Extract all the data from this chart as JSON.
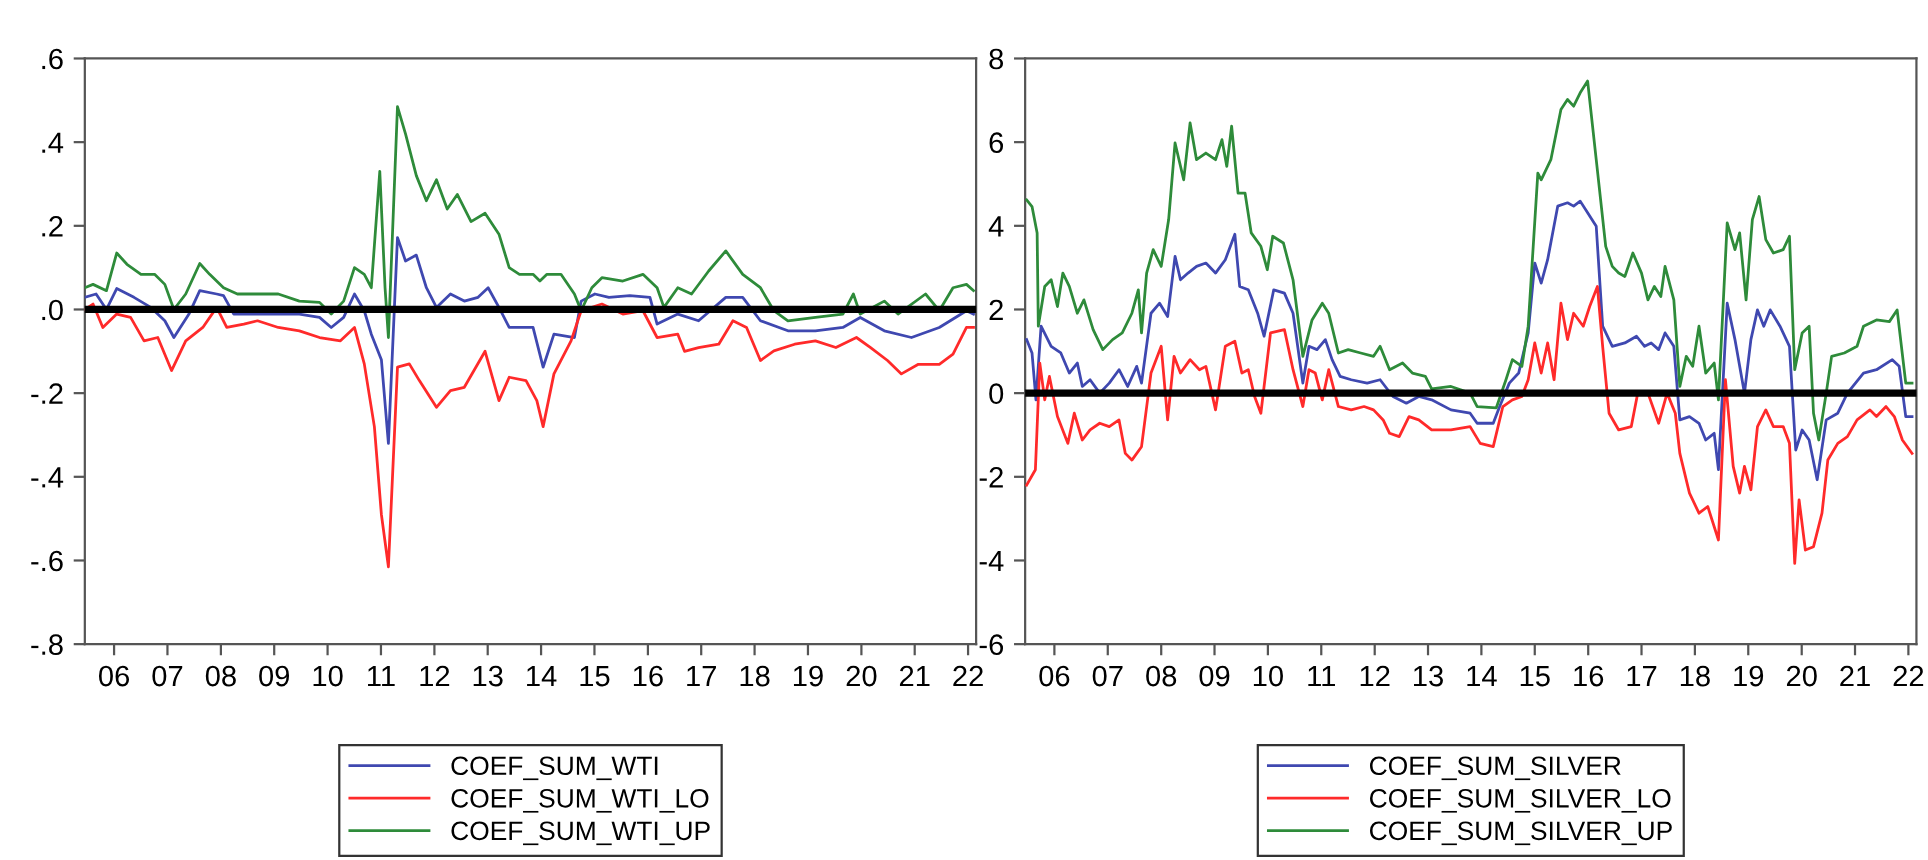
{
  "chart_data": [
    {
      "type": "line",
      "xlim": [
        "2005-12-13",
        "2022-08-25"
      ],
      "xticks": [
        {
          "value": "2006-07-01",
          "label": "06"
        },
        {
          "value": "2007-07-01",
          "label": "07"
        },
        {
          "value": "2008-07-01",
          "label": "08"
        },
        {
          "value": "2009-07-01",
          "label": "09"
        },
        {
          "value": "2010-07-01",
          "label": "10"
        },
        {
          "value": "2011-07-01",
          "label": "11"
        },
        {
          "value": "2012-07-01",
          "label": "12"
        },
        {
          "value": "2013-07-01",
          "label": "13"
        },
        {
          "value": "2014-07-01",
          "label": "14"
        },
        {
          "value": "2015-07-01",
          "label": "15"
        },
        {
          "value": "2016-07-01",
          "label": "16"
        },
        {
          "value": "2017-07-01",
          "label": "17"
        },
        {
          "value": "2018-07-01",
          "label": "18"
        },
        {
          "value": "2019-07-01",
          "label": "19"
        },
        {
          "value": "2020-07-01",
          "label": "20"
        },
        {
          "value": "2021-07-01",
          "label": "21"
        },
        {
          "value": "2022-07-01",
          "label": "22"
        }
      ],
      "ylim": [
        -0.8,
        0.6
      ],
      "yticks": [
        {
          "value": 0.6,
          "label": ".6"
        },
        {
          "value": 0.4,
          "label": ".4"
        },
        {
          "value": 0.2,
          "label": ".2"
        },
        {
          "value": 0,
          "label": ".0"
        },
        {
          "value": -0.2,
          "label": "-.2"
        },
        {
          "value": -0.4,
          "label": "-.4"
        },
        {
          "value": -0.6,
          "label": "-.6"
        },
        {
          "value": -0.8,
          "label": "-.8"
        }
      ],
      "ref_lines": [
        {
          "axis": "y",
          "value": 0,
          "color": "#000000"
        }
      ],
      "legend": "bottom",
      "series": [
        {
          "name": "COEF_SUM_WTI",
          "color": "#3f48b0",
          "x": [
            "2005-12-13",
            "2006-02-28",
            "2006-05-10",
            "2006-07-19",
            "2006-11-14",
            "2007-03-09",
            "2007-06-13",
            "2007-08-14",
            "2007-11-25",
            "2008-02-07",
            "2008-06-02",
            "2008-07-19",
            "2008-09-27",
            "2009-03-09",
            "2009-07-29",
            "2009-12-20",
            "2010-05-07",
            "2010-07-26",
            "2010-10-19",
            "2011-01-01",
            "2011-03-09",
            "2011-04-26",
            "2011-07-04",
            "2011-08-21",
            "2011-10-22",
            "2011-12-16",
            "2012-02-28",
            "2012-05-07",
            "2012-07-15",
            "2012-10-19",
            "2013-01-22",
            "2013-04-26",
            "2013-07-04",
            "2013-09-16",
            "2013-11-25",
            "2014-05-07",
            "2014-07-15",
            "2014-09-27",
            "2015-02-14",
            "2015-04-01",
            "2015-07-04",
            "2015-10-08",
            "2016-02-28",
            "2016-07-15",
            "2016-09-02",
            "2017-01-22",
            "2017-06-13",
            "2017-12-16",
            "2018-04-11",
            "2018-08-10",
            "2019-02-14",
            "2019-08-21",
            "2020-02-25",
            "2020-06-23",
            "2020-12-05",
            "2021-06-09",
            "2021-12-16",
            "2022-06-20",
            "2022-08-07"
          ],
          "values": [
            0.029,
            0.037,
            0,
            0.05,
            0.029,
            0.005,
            -0.027,
            -0.067,
            -0.011,
            0.045,
            0.037,
            0.033,
            -0.011,
            -0.011,
            -0.011,
            -0.011,
            -0.019,
            -0.043,
            -0.019,
            0.037,
            -0.003,
            -0.059,
            -0.12,
            -0.32,
            0.172,
            0.116,
            0.13,
            0.052,
            0.005,
            0.037,
            0.02,
            0.029,
            0.052,
            0.005,
            -0.043,
            -0.043,
            -0.138,
            -0.059,
            -0.067,
            0.02,
            0.037,
            0.029,
            0.033,
            0.029,
            -0.035,
            -0.011,
            -0.027,
            0.029,
            0.029,
            -0.027,
            -0.051,
            -0.051,
            -0.043,
            -0.019,
            -0.051,
            -0.067,
            -0.043,
            -0.003,
            -0.011
          ]
        },
        {
          "name": "COEF_SUM_WTI_LO",
          "color": "#ff2a2a",
          "x": [
            "2005-12-13",
            "2006-02-07",
            "2006-04-15",
            "2006-07-19",
            "2006-10-22",
            "2007-01-22",
            "2007-04-26",
            "2007-07-29",
            "2007-11-03",
            "2008-02-28",
            "2008-06-02",
            "2008-08-10",
            "2008-12-05",
            "2009-03-09",
            "2009-07-29",
            "2009-12-20",
            "2010-05-07",
            "2010-09-27",
            "2011-01-01",
            "2011-03-09",
            "2011-05-17",
            "2011-07-04",
            "2011-08-21",
            "2011-10-22",
            "2012-01-11",
            "2012-03-20",
            "2012-07-15",
            "2012-10-19",
            "2013-01-22",
            "2013-06-13",
            "2013-09-16",
            "2013-11-25",
            "2014-03-20",
            "2014-06-02",
            "2014-07-15",
            "2014-09-27",
            "2015-01-22",
            "2015-04-01",
            "2015-08-21",
            "2016-01-11",
            "2016-05-28",
            "2016-09-02",
            "2017-01-22",
            "2017-03-09",
            "2017-06-13",
            "2017-10-29",
            "2018-02-03",
            "2018-05-07",
            "2018-08-10",
            "2018-11-10",
            "2019-04-01",
            "2019-08-21",
            "2020-01-08",
            "2020-05-28",
            "2020-09-02",
            "2020-12-27",
            "2021-04-01",
            "2021-07-26",
            "2021-12-16",
            "2022-03-20",
            "2022-06-20",
            "2022-08-07"
          ],
          "values": [
            0,
            0.013,
            -0.043,
            -0.011,
            -0.019,
            -0.075,
            -0.067,
            -0.146,
            -0.075,
            -0.043,
            0.005,
            -0.043,
            -0.035,
            -0.027,
            -0.043,
            -0.051,
            -0.067,
            -0.075,
            -0.043,
            -0.13,
            -0.28,
            -0.49,
            -0.615,
            -0.138,
            -0.13,
            -0.17,
            -0.234,
            -0.194,
            -0.186,
            -0.1,
            -0.218,
            -0.162,
            -0.17,
            -0.218,
            -0.28,
            -0.154,
            -0.075,
            -0.003,
            0.013,
            -0.011,
            -0.003,
            -0.067,
            -0.059,
            -0.1,
            -0.091,
            -0.083,
            -0.027,
            -0.043,
            -0.122,
            -0.099,
            -0.083,
            -0.075,
            -0.091,
            -0.067,
            -0.091,
            -0.122,
            -0.154,
            -0.131,
            -0.131,
            -0.107,
            -0.043,
            -0.043
          ]
        },
        {
          "name": "COEF_SUM_WTI_UP",
          "color": "#2e8b3a",
          "x": [
            "2005-12-13",
            "2006-02-07",
            "2006-05-10",
            "2006-07-19",
            "2006-09-27",
            "2007-01-01",
            "2007-04-04",
            "2007-06-13",
            "2007-08-14",
            "2007-11-03",
            "2008-02-07",
            "2008-04-15",
            "2008-07-19",
            "2008-10-22",
            "2009-03-09",
            "2009-07-29",
            "2009-12-20",
            "2010-05-07",
            "2010-07-26",
            "2010-10-19",
            "2011-01-01",
            "2011-03-09",
            "2011-04-26",
            "2011-06-23",
            "2011-07-29",
            "2011-08-21",
            "2011-10-22",
            "2011-12-16",
            "2012-02-28",
            "2012-05-07",
            "2012-07-15",
            "2012-09-27",
            "2012-12-05",
            "2013-03-09",
            "2013-06-13",
            "2013-09-16",
            "2013-11-25",
            "2014-02-03",
            "2014-05-07",
            "2014-06-23",
            "2014-08-10",
            "2014-11-14",
            "2015-02-14",
            "2015-04-01",
            "2015-06-13",
            "2015-08-21",
            "2016-01-11",
            "2016-05-28",
            "2016-09-02",
            "2016-10-19",
            "2017-01-22",
            "2017-04-26",
            "2017-08-21",
            "2017-12-16",
            "2018-04-11",
            "2018-08-10",
            "2018-11-10",
            "2019-02-14",
            "2019-08-21",
            "2020-02-25",
            "2020-05-07",
            "2020-06-23",
            "2020-12-05",
            "2021-03-09",
            "2021-09-13",
            "2021-12-16",
            "2022-03-20",
            "2022-06-20",
            "2022-08-07"
          ],
          "values": [
            0.052,
            0.06,
            0.045,
            0.135,
            0.108,
            0.084,
            0.084,
            0.06,
            0,
            0.037,
            0.11,
            0.084,
            0.052,
            0.037,
            0.037,
            0.037,
            0.02,
            0.017,
            -0.011,
            0.02,
            0.1,
            0.084,
            0.052,
            0.33,
            0.052,
            -0.067,
            0.485,
            0.42,
            0.32,
            0.26,
            0.31,
            0.24,
            0.275,
            0.21,
            0.23,
            0.18,
            0.1,
            0.084,
            0.084,
            0.068,
            0.084,
            0.084,
            0.037,
            -0.003,
            0.052,
            0.076,
            0.068,
            0.084,
            0.052,
            0.005,
            0.052,
            0.037,
            0.092,
            0.14,
            0.084,
            0.052,
            -0.003,
            -0.027,
            -0.019,
            -0.011,
            0.037,
            -0.011,
            0.02,
            -0.011,
            0.037,
            -0.003,
            0.052,
            0.06,
            0.045
          ]
        }
      ]
    },
    {
      "type": "line",
      "xlim": [
        "2005-12-13",
        "2022-08-25"
      ],
      "xticks": [
        {
          "value": "2006-07-01",
          "label": "06"
        },
        {
          "value": "2007-07-01",
          "label": "07"
        },
        {
          "value": "2008-07-01",
          "label": "08"
        },
        {
          "value": "2009-07-01",
          "label": "09"
        },
        {
          "value": "2010-07-01",
          "label": "10"
        },
        {
          "value": "2011-07-01",
          "label": "11"
        },
        {
          "value": "2012-07-01",
          "label": "12"
        },
        {
          "value": "2013-07-01",
          "label": "13"
        },
        {
          "value": "2014-07-01",
          "label": "14"
        },
        {
          "value": "2015-07-01",
          "label": "15"
        },
        {
          "value": "2016-07-01",
          "label": "16"
        },
        {
          "value": "2017-07-01",
          "label": "17"
        },
        {
          "value": "2018-07-01",
          "label": "18"
        },
        {
          "value": "2019-07-01",
          "label": "19"
        },
        {
          "value": "2020-07-01",
          "label": "20"
        },
        {
          "value": "2021-07-01",
          "label": "21"
        },
        {
          "value": "2022-07-01",
          "label": "22"
        }
      ],
      "ylim": [
        -6,
        8
      ],
      "yticks": [
        8,
        6,
        4,
        2,
        0,
        -2,
        -4,
        -6
      ],
      "ref_lines": [
        {
          "axis": "y",
          "value": 0,
          "color": "#000000"
        }
      ],
      "legend": "bottom",
      "series": [
        {
          "name": "COEF_SUM_SILVER",
          "color": "#3f48b0",
          "x": [
            "2005-12-23",
            "2006-01-29",
            "2006-02-25",
            "2006-04-01",
            "2006-06-09",
            "2006-08-14",
            "2006-10-11",
            "2006-12-05",
            "2007-01-08",
            "2007-03-02",
            "2007-05-07",
            "2007-07-11",
            "2007-09-16",
            "2007-11-14",
            "2008-01-15",
            "2008-02-17",
            "2008-04-22",
            "2008-06-20",
            "2008-08-14",
            "2008-10-04",
            "2008-11-10",
            "2009-01-01",
            "2009-02-28",
            "2009-05-03",
            "2009-07-08",
            "2009-09-13",
            "2009-11-17",
            "2009-12-20",
            "2010-02-17",
            "2010-04-22",
            "2010-06-05",
            "2010-08-10",
            "2010-10-22",
            "2010-12-20",
            "2011-02-25",
            "2011-04-08",
            "2011-06-02",
            "2011-07-29",
            "2011-09-13",
            "2011-11-07",
            "2012-01-22",
            "2012-05-10",
            "2012-08-07",
            "2012-11-03",
            "2013-02-03",
            "2013-04-29",
            "2013-07-26",
            "2013-12-05",
            "2014-04-15",
            "2014-06-02",
            "2014-09-20",
            "2014-11-03",
            "2015-01-08",
            "2015-03-13",
            "2015-05-17",
            "2015-07-01",
            "2015-08-14",
            "2015-09-27",
            "2015-12-05",
            "2016-02-10",
            "2016-03-23",
            "2016-05-07",
            "2016-06-27",
            "2016-08-25",
            "2016-10-08",
            "2016-12-13",
            "2017-03-09",
            "2017-05-28",
            "2017-07-22",
            "2017-09-05",
            "2017-10-26",
            "2017-12-09",
            "2018-02-07",
            "2018-03-20",
            "2018-05-25",
            "2018-07-29",
            "2018-09-13",
            "2018-11-10",
            "2018-12-09",
            "2019-02-07",
            "2019-04-01",
            "2019-06-05",
            "2019-07-19",
            "2019-09-02",
            "2019-10-15",
            "2019-11-28",
            "2020-02-03",
            "2020-04-08",
            "2020-05-21",
            "2020-07-04",
            "2020-08-21",
            "2020-10-15",
            "2020-12-16",
            "2021-03-05",
            "2021-05-10",
            "2021-08-28",
            "2021-11-25",
            "2022-03-13",
            "2022-04-29",
            "2022-06-13",
            "2022-07-26"
          ],
          "values": [
            1.28,
            0.96,
            -0.16,
            1.6,
            1.12,
            0.96,
            0.48,
            0.72,
            0.16,
            0.32,
            0,
            0.24,
            0.56,
            0.16,
            0.64,
            0.24,
            1.91,
            2.15,
            1.83,
            3.27,
            2.71,
            2.87,
            3.03,
            3.11,
            2.87,
            3.19,
            3.8,
            2.55,
            2.47,
            1.91,
            1.36,
            2.47,
            2.39,
            1.91,
            0.24,
            1.12,
            1.04,
            1.28,
            0.8,
            0.4,
            0.32,
            0.24,
            0.32,
            -0.08,
            -0.24,
            -0.08,
            -0.16,
            -0.4,
            -0.48,
            -0.72,
            -0.72,
            -0.32,
            0.24,
            0.48,
            1.44,
            3.11,
            2.63,
            3.19,
            4.47,
            4.55,
            4.47,
            4.59,
            4.31,
            3.99,
            1.6,
            1.12,
            1.2,
            1.36,
            1.12,
            1.2,
            1.04,
            1.44,
            1.12,
            -0.64,
            -0.56,
            -0.72,
            -1.12,
            -0.96,
            -1.83,
            2.15,
            1.28,
            0,
            1.28,
            1.99,
            1.6,
            1.99,
            1.6,
            1.12,
            -1.36,
            -0.88,
            -1.12,
            -2.07,
            -0.64,
            -0.48,
            0,
            0.48,
            0.56,
            0.8,
            0.64,
            -0.56,
            -0.56
          ]
        },
        {
          "name": "COEF_SUM_SILVER_LO",
          "color": "#ff2a2a",
          "x": [
            "2005-12-23",
            "2006-02-21",
            "2006-03-23",
            "2006-04-26",
            "2006-05-28",
            "2006-07-22",
            "2006-10-01",
            "2006-11-14",
            "2007-01-08",
            "2007-03-02",
            "2007-05-07",
            "2007-07-11",
            "2007-09-16",
            "2007-10-29",
            "2007-12-13",
            "2008-02-17",
            "2008-04-22",
            "2008-07-01",
            "2008-08-14",
            "2008-09-27",
            "2008-11-10",
            "2009-01-15",
            "2009-03-20",
            "2009-05-03",
            "2009-07-08",
            "2009-09-13",
            "2009-11-17",
            "2010-01-04",
            "2010-02-17",
            "2010-04-01",
            "2010-05-14",
            "2010-07-19",
            "2010-10-22",
            "2010-12-20",
            "2011-02-25",
            "2011-04-08",
            "2011-05-21",
            "2011-07-08",
            "2011-08-21",
            "2011-10-26",
            "2012-01-22",
            "2012-04-19",
            "2012-06-23",
            "2012-08-28",
            "2012-10-11",
            "2012-12-16",
            "2013-02-21",
            "2013-04-29",
            "2013-07-26",
            "2013-12-05",
            "2014-04-15",
            "2014-06-23",
            "2014-09-20",
            "2014-11-25",
            "2015-01-29",
            "2015-04-04",
            "2015-05-17",
            "2015-07-01",
            "2015-08-14",
            "2015-09-27",
            "2015-11-10",
            "2015-12-27",
            "2016-02-10",
            "2016-03-23",
            "2016-05-28",
            "2016-07-11",
            "2016-09-02",
            "2016-10-08",
            "2016-11-21",
            "2017-01-26",
            "2017-04-22",
            "2017-06-05",
            "2017-08-14",
            "2017-10-26",
            "2017-12-23",
            "2018-02-17",
            "2018-03-20",
            "2018-05-25",
            "2018-07-29",
            "2018-09-27",
            "2018-12-09",
            "2019-01-26",
            "2019-03-20",
            "2019-05-03",
            "2019-06-05",
            "2019-07-19",
            "2019-09-02",
            "2019-10-29",
            "2019-12-20",
            "2020-02-25",
            "2020-04-08",
            "2020-05-14",
            "2020-06-13",
            "2020-07-26",
            "2020-09-20",
            "2020-11-17",
            "2020-12-27",
            "2021-03-05",
            "2021-05-10",
            "2021-07-15",
            "2021-10-11",
            "2021-11-25",
            "2022-01-29",
            "2022-03-27",
            "2022-05-21",
            "2022-07-26"
          ],
          "values": [
            -2.2,
            -1.83,
            0.72,
            -0.16,
            0.4,
            -0.56,
            -1.2,
            -0.48,
            -1.12,
            -0.88,
            -0.72,
            -0.8,
            -0.64,
            -1.44,
            -1.6,
            -1.28,
            0.48,
            1.12,
            -0.64,
            0.88,
            0.48,
            0.8,
            0.56,
            0.64,
            -0.4,
            1.12,
            1.24,
            0.48,
            0.56,
            -0.08,
            -0.48,
            1.44,
            1.52,
            0.56,
            -0.32,
            0.56,
            0.48,
            -0.16,
            0.56,
            -0.32,
            -0.4,
            -0.32,
            -0.4,
            -0.64,
            -0.96,
            -1.04,
            -0.56,
            -0.64,
            -0.88,
            -0.88,
            -0.8,
            -1.2,
            -1.28,
            -0.32,
            -0.16,
            -0.08,
            0.32,
            1.2,
            0.48,
            1.2,
            0.32,
            2.15,
            1.28,
            1.91,
            1.6,
            2.07,
            2.55,
            1.12,
            -0.48,
            -0.88,
            -0.8,
            0,
            0,
            -0.72,
            0,
            -0.48,
            -1.44,
            -2.39,
            -2.87,
            -2.71,
            -3.51,
            0.32,
            -1.75,
            -2.39,
            -1.75,
            -2.31,
            -0.8,
            -0.4,
            -0.8,
            -0.8,
            -1.2,
            -4.07,
            -2.55,
            -3.75,
            -3.67,
            -2.87,
            -1.6,
            -1.2,
            -1.04,
            -0.64,
            -0.4,
            -0.56,
            -0.32,
            -0.56,
            -1.12,
            -1.44
          ]
        },
        {
          "name": "COEF_SUM_SILVER_UP",
          "color": "#2e8b3a",
          "x": [
            "2005-12-23",
            "2006-01-29",
            "2006-03-05",
            "2006-03-13",
            "2006-04-26",
            "2006-06-09",
            "2006-07-22",
            "2006-08-28",
            "2006-10-11",
            "2006-12-05",
            "2007-01-19",
            "2007-03-23",
            "2007-05-28",
            "2007-08-03",
            "2007-10-08",
            "2007-12-13",
            "2008-01-26",
            "2008-02-17",
            "2008-03-23",
            "2008-05-07",
            "2008-07-01",
            "2008-08-21",
            "2008-10-04",
            "2008-12-02",
            "2009-01-15",
            "2009-02-28",
            "2009-05-03",
            "2009-07-08",
            "2009-08-21",
            "2009-09-23",
            "2009-10-26",
            "2009-12-09",
            "2010-01-26",
            "2010-03-09",
            "2010-05-14",
            "2010-06-27",
            "2010-08-03",
            "2010-10-15",
            "2010-12-20",
            "2011-02-25",
            "2011-04-29",
            "2011-07-08",
            "2011-08-21",
            "2011-10-26",
            "2012-01-01",
            "2012-03-27",
            "2012-06-23",
            "2012-08-07",
            "2012-10-11",
            "2013-01-08",
            "2013-03-16",
            "2013-06-13",
            "2013-07-26",
            "2013-12-05",
            "2014-04-15",
            "2014-06-02",
            "2014-10-11",
            "2014-12-16",
            "2015-01-29",
            "2015-04-04",
            "2015-05-17",
            "2015-07-22",
            "2015-08-14",
            "2015-10-19",
            "2015-12-27",
            "2016-02-10",
            "2016-03-23",
            "2016-05-07",
            "2016-06-27",
            "2016-08-25",
            "2016-10-29",
            "2016-12-13",
            "2017-01-26",
            "2017-03-09",
            "2017-05-03",
            "2017-07-01",
            "2017-08-14",
            "2017-09-27",
            "2017-11-10",
            "2017-12-09",
            "2018-02-07",
            "2018-03-20",
            "2018-05-03",
            "2018-06-16",
            "2018-07-29",
            "2018-09-13",
            "2018-11-10",
            "2018-12-09",
            "2019-02-07",
            "2019-04-01",
            "2019-05-03",
            "2019-06-16",
            "2019-07-29",
            "2019-09-13",
            "2019-10-29",
            "2019-12-20",
            "2020-02-25",
            "2020-04-08",
            "2020-05-14",
            "2020-07-04",
            "2020-08-21",
            "2020-09-20",
            "2020-10-26",
            "2020-12-16",
            "2021-01-22",
            "2021-04-19",
            "2021-07-15",
            "2021-08-28",
            "2021-11-25",
            "2022-02-21",
            "2022-04-15",
            "2022-06-13",
            "2022-07-26"
          ],
          "values": [
            4.62,
            4.46,
            3.83,
            1.6,
            2.55,
            2.71,
            2.07,
            2.87,
            2.55,
            1.91,
            2.23,
            1.52,
            1.04,
            1.28,
            1.44,
            1.91,
            2.47,
            1.44,
            2.87,
            3.43,
            3.03,
            4.15,
            5.98,
            5.1,
            6.46,
            5.58,
            5.74,
            5.58,
            6.06,
            5.42,
            6.38,
            4.78,
            4.78,
            3.83,
            3.51,
            2.95,
            3.75,
            3.59,
            2.71,
            0.88,
            1.75,
            2.15,
            1.91,
            0.96,
            1.04,
            0.96,
            0.88,
            1.12,
            0.56,
            0.72,
            0.48,
            0.4,
            0.1,
            0.16,
            0,
            -0.32,
            -0.35,
            0.32,
            0.8,
            0.64,
            1.6,
            5.26,
            5.1,
            5.58,
            6.78,
            7.02,
            6.86,
            7.18,
            7.46,
            5.58,
            3.51,
            3.03,
            2.87,
            2.79,
            3.35,
            2.87,
            2.23,
            2.55,
            2.31,
            3.03,
            2.23,
            0.16,
            0.88,
            0.64,
            1.6,
            0.48,
            0.72,
            -0.16,
            4.07,
            3.43,
            3.83,
            2.23,
            4.15,
            4.7,
            3.67,
            3.35,
            3.43,
            3.75,
            0.56,
            1.44,
            1.6,
            -0.48,
            -1.12,
            0,
            0.88,
            0.96,
            1.12,
            1.6,
            1.75,
            1.71,
            1.99,
            0.24,
            0.24
          ]
        }
      ]
    }
  ]
}
